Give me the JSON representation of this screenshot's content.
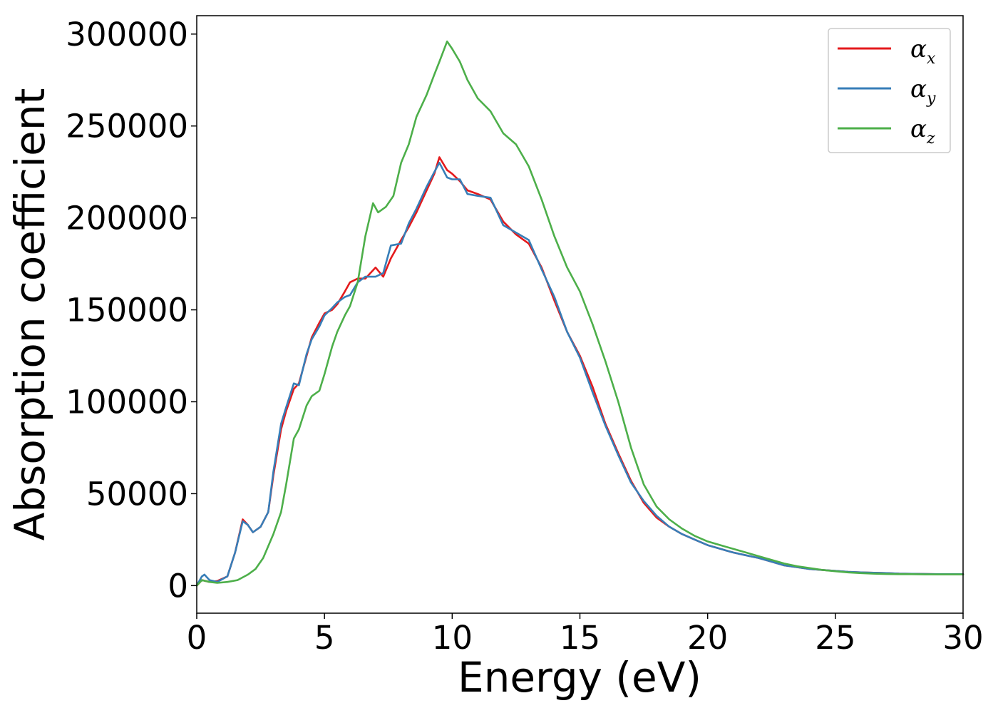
{
  "chart_data": {
    "type": "line",
    "xlabel": "Energy (eV)",
    "ylabel": "Absorption coefficient",
    "xlim": [
      0,
      30
    ],
    "ylim": [
      -15000,
      310000
    ],
    "x_ticks": [
      "0",
      "5",
      "10",
      "15",
      "20",
      "25",
      "30"
    ],
    "y_ticks": [
      "0",
      "50000",
      "100000",
      "150000",
      "200000",
      "250000",
      "300000"
    ],
    "grid": false,
    "legend_position": "top-right",
    "series": [
      {
        "name": "α",
        "subscript": "x",
        "color": "#e41a1c",
        "points": [
          [
            0,
            0
          ],
          [
            0.2,
            3000
          ],
          [
            0.5,
            2000
          ],
          [
            0.8,
            2500
          ],
          [
            1.2,
            5000
          ],
          [
            1.5,
            18000
          ],
          [
            1.8,
            36000
          ],
          [
            2.0,
            33000
          ],
          [
            2.2,
            29000
          ],
          [
            2.5,
            32000
          ],
          [
            2.8,
            40000
          ],
          [
            3.0,
            60000
          ],
          [
            3.3,
            85000
          ],
          [
            3.5,
            95000
          ],
          [
            3.8,
            107000
          ],
          [
            4.0,
            110000
          ],
          [
            4.3,
            125000
          ],
          [
            4.5,
            135000
          ],
          [
            4.8,
            143000
          ],
          [
            5.0,
            148000
          ],
          [
            5.3,
            150000
          ],
          [
            5.5,
            153000
          ],
          [
            5.8,
            160000
          ],
          [
            6.0,
            165000
          ],
          [
            6.3,
            167000
          ],
          [
            6.6,
            167000
          ],
          [
            7.0,
            173000
          ],
          [
            7.3,
            168000
          ],
          [
            7.6,
            178000
          ],
          [
            8.0,
            188000
          ],
          [
            8.3,
            195000
          ],
          [
            8.6,
            203000
          ],
          [
            9.0,
            215000
          ],
          [
            9.3,
            224000
          ],
          [
            9.5,
            233000
          ],
          [
            9.8,
            226000
          ],
          [
            10.0,
            224000
          ],
          [
            10.3,
            220000
          ],
          [
            10.6,
            215000
          ],
          [
            11.0,
            213000
          ],
          [
            11.5,
            210000
          ],
          [
            12.0,
            198000
          ],
          [
            12.5,
            191000
          ],
          [
            13.0,
            186000
          ],
          [
            13.5,
            173000
          ],
          [
            14.0,
            155000
          ],
          [
            14.5,
            138000
          ],
          [
            15.0,
            125000
          ],
          [
            15.5,
            108000
          ],
          [
            16.0,
            88000
          ],
          [
            16.5,
            72000
          ],
          [
            17.0,
            57000
          ],
          [
            17.5,
            45000
          ],
          [
            18.0,
            37000
          ],
          [
            18.5,
            32000
          ],
          [
            19.0,
            28000
          ],
          [
            19.5,
            25000
          ],
          [
            20.0,
            22000
          ],
          [
            20.5,
            20000
          ],
          [
            21.0,
            18000
          ],
          [
            21.5,
            16500
          ],
          [
            22.0,
            15000
          ],
          [
            22.5,
            13000
          ],
          [
            23.0,
            11000
          ],
          [
            23.5,
            10000
          ],
          [
            24.0,
            9000
          ],
          [
            24.5,
            8500
          ],
          [
            25.0,
            8000
          ],
          [
            25.5,
            7500
          ],
          [
            26.0,
            7200
          ],
          [
            26.5,
            7000
          ],
          [
            27.0,
            6800
          ],
          [
            27.5,
            6500
          ],
          [
            28.0,
            6400
          ],
          [
            28.5,
            6300
          ],
          [
            29.0,
            6200
          ],
          [
            29.5,
            6200
          ],
          [
            30.0,
            6200
          ]
        ]
      },
      {
        "name": "α",
        "subscript": "y",
        "color": "#377eb8",
        "points": [
          [
            0,
            0
          ],
          [
            0.2,
            5000
          ],
          [
            0.3,
            6000
          ],
          [
            0.5,
            3000
          ],
          [
            0.8,
            2000
          ],
          [
            1.2,
            5000
          ],
          [
            1.5,
            18000
          ],
          [
            1.8,
            35000
          ],
          [
            2.0,
            33000
          ],
          [
            2.2,
            29000
          ],
          [
            2.5,
            32000
          ],
          [
            2.8,
            40000
          ],
          [
            3.0,
            62000
          ],
          [
            3.3,
            88000
          ],
          [
            3.5,
            97000
          ],
          [
            3.8,
            110000
          ],
          [
            4.0,
            109000
          ],
          [
            4.3,
            126000
          ],
          [
            4.5,
            134000
          ],
          [
            4.8,
            141000
          ],
          [
            5.0,
            147000
          ],
          [
            5.3,
            151000
          ],
          [
            5.5,
            154000
          ],
          [
            5.8,
            157000
          ],
          [
            6.0,
            158000
          ],
          [
            6.3,
            165000
          ],
          [
            6.6,
            168000
          ],
          [
            7.0,
            168000
          ],
          [
            7.3,
            170000
          ],
          [
            7.6,
            185000
          ],
          [
            8.0,
            186000
          ],
          [
            8.3,
            197000
          ],
          [
            8.6,
            205000
          ],
          [
            9.0,
            217000
          ],
          [
            9.3,
            225000
          ],
          [
            9.5,
            230000
          ],
          [
            9.8,
            222000
          ],
          [
            10.0,
            221000
          ],
          [
            10.3,
            221000
          ],
          [
            10.6,
            213000
          ],
          [
            11.0,
            212000
          ],
          [
            11.5,
            211000
          ],
          [
            12.0,
            196000
          ],
          [
            12.5,
            192000
          ],
          [
            13.0,
            188000
          ],
          [
            13.5,
            172000
          ],
          [
            14.0,
            157000
          ],
          [
            14.5,
            138000
          ],
          [
            15.0,
            124000
          ],
          [
            15.5,
            105000
          ],
          [
            16.0,
            87000
          ],
          [
            16.5,
            71000
          ],
          [
            17.0,
            56000
          ],
          [
            17.5,
            46000
          ],
          [
            18.0,
            38000
          ],
          [
            18.5,
            32000
          ],
          [
            19.0,
            28000
          ],
          [
            19.5,
            25000
          ],
          [
            20.0,
            22000
          ],
          [
            20.5,
            20000
          ],
          [
            21.0,
            18000
          ],
          [
            21.5,
            16500
          ],
          [
            22.0,
            15000
          ],
          [
            22.5,
            13000
          ],
          [
            23.0,
            11000
          ],
          [
            23.5,
            10000
          ],
          [
            24.0,
            9000
          ],
          [
            24.5,
            8500
          ],
          [
            25.0,
            8000
          ],
          [
            25.5,
            7500
          ],
          [
            26.0,
            7200
          ],
          [
            26.5,
            7000
          ],
          [
            27.0,
            6800
          ],
          [
            27.5,
            6500
          ],
          [
            28.0,
            6400
          ],
          [
            28.5,
            6300
          ],
          [
            29.0,
            6200
          ],
          [
            29.5,
            6200
          ],
          [
            30.0,
            6200
          ]
        ]
      },
      {
        "name": "α",
        "subscript": "z",
        "color": "#4daf4a",
        "points": [
          [
            0,
            0
          ],
          [
            0.2,
            3000
          ],
          [
            0.5,
            2000
          ],
          [
            0.8,
            1500
          ],
          [
            1.2,
            2000
          ],
          [
            1.6,
            3000
          ],
          [
            2.0,
            6000
          ],
          [
            2.3,
            9000
          ],
          [
            2.6,
            15000
          ],
          [
            3.0,
            28000
          ],
          [
            3.3,
            40000
          ],
          [
            3.5,
            55000
          ],
          [
            3.8,
            80000
          ],
          [
            4.0,
            85000
          ],
          [
            4.3,
            98000
          ],
          [
            4.5,
            103000
          ],
          [
            4.8,
            106000
          ],
          [
            5.0,
            115000
          ],
          [
            5.3,
            130000
          ],
          [
            5.5,
            138000
          ],
          [
            5.8,
            147000
          ],
          [
            6.0,
            152000
          ],
          [
            6.3,
            165000
          ],
          [
            6.6,
            190000
          ],
          [
            6.9,
            208000
          ],
          [
            7.1,
            203000
          ],
          [
            7.4,
            206000
          ],
          [
            7.7,
            212000
          ],
          [
            8.0,
            230000
          ],
          [
            8.3,
            240000
          ],
          [
            8.6,
            255000
          ],
          [
            9.0,
            267000
          ],
          [
            9.3,
            278000
          ],
          [
            9.5,
            285000
          ],
          [
            9.8,
            296000
          ],
          [
            10.0,
            292000
          ],
          [
            10.3,
            285000
          ],
          [
            10.6,
            275000
          ],
          [
            11.0,
            265000
          ],
          [
            11.5,
            258000
          ],
          [
            12.0,
            246000
          ],
          [
            12.5,
            240000
          ],
          [
            13.0,
            228000
          ],
          [
            13.5,
            210000
          ],
          [
            14.0,
            190000
          ],
          [
            14.5,
            173000
          ],
          [
            15.0,
            160000
          ],
          [
            15.5,
            142000
          ],
          [
            16.0,
            122000
          ],
          [
            16.5,
            100000
          ],
          [
            17.0,
            75000
          ],
          [
            17.5,
            55000
          ],
          [
            18.0,
            43000
          ],
          [
            18.5,
            36000
          ],
          [
            19.0,
            31000
          ],
          [
            19.5,
            27000
          ],
          [
            20.0,
            24000
          ],
          [
            20.5,
            22000
          ],
          [
            21.0,
            20000
          ],
          [
            21.5,
            18000
          ],
          [
            22.0,
            16000
          ],
          [
            22.5,
            14000
          ],
          [
            23.0,
            12000
          ],
          [
            23.5,
            10500
          ],
          [
            24.0,
            9500
          ],
          [
            24.5,
            8500
          ],
          [
            25.0,
            7800
          ],
          [
            25.5,
            7200
          ],
          [
            26.0,
            6800
          ],
          [
            26.5,
            6500
          ],
          [
            27.0,
            6300
          ],
          [
            27.5,
            6200
          ],
          [
            28.0,
            6200
          ],
          [
            28.5,
            6100
          ],
          [
            29.0,
            6100
          ],
          [
            29.5,
            6100
          ],
          [
            30.0,
            6100
          ]
        ]
      }
    ]
  }
}
